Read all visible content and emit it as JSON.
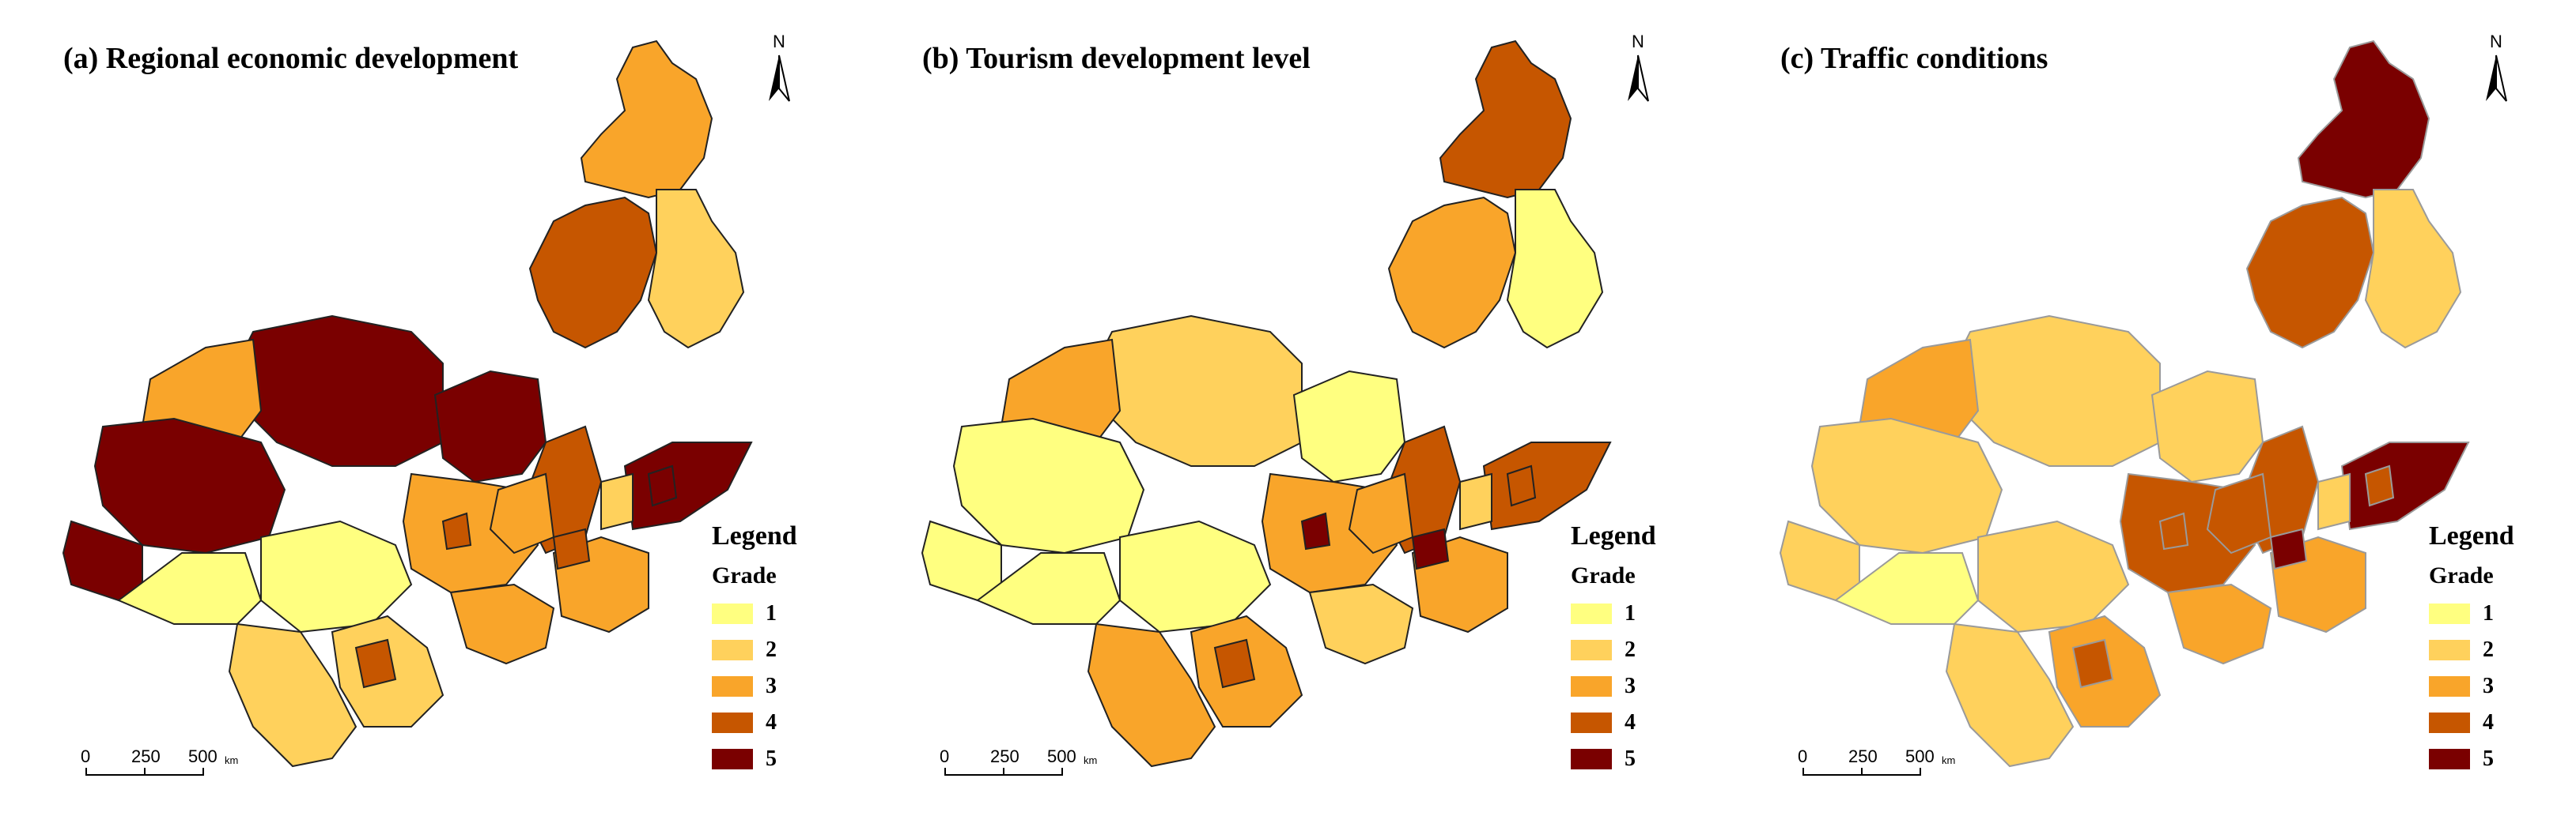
{
  "colors": {
    "grade1": "#ffff80",
    "grade2": "#ffd15c",
    "grade3": "#f9a52a",
    "grade4": "#c65600",
    "grade5": "#7a0000",
    "border": "#222222",
    "border_c": "#9a9a9a"
  },
  "panels": [
    {
      "title": "(a) Regional economic development",
      "north_label": "N",
      "legend_title": "Legend",
      "legend_subtitle": "Grade",
      "legend_items": [
        "1",
        "2",
        "3",
        "4",
        "5"
      ],
      "scale": {
        "ticks": [
          "0",
          "250",
          "500"
        ],
        "unit": "km"
      },
      "regions": {
        "northeast": 3,
        "northeast_mid": 4,
        "northeast_east": 2,
        "north_central": 5,
        "north_west": 3,
        "west_block": 5,
        "tibet": 5,
        "tibet_south": 1,
        "qinghai": 1,
        "southwest": 2,
        "sichuan": 2,
        "central_north": 5,
        "central": 3,
        "central_south": 3,
        "north_china": 4,
        "shandong": 3,
        "shandong_tip": 5,
        "hebei": 3,
        "far_east": 2,
        "spot_a": 4,
        "spot_b": 4,
        "spot_c": 5,
        "spot_d": 4
      }
    },
    {
      "title": "(b) Tourism development level",
      "north_label": "N",
      "legend_title": "Legend",
      "legend_subtitle": "Grade",
      "legend_items": [
        "1",
        "2",
        "3",
        "4",
        "5"
      ],
      "scale": {
        "ticks": [
          "0",
          "250",
          "500"
        ],
        "unit": "km"
      },
      "regions": {
        "northeast": 4,
        "northeast_mid": 3,
        "northeast_east": 1,
        "north_central": 2,
        "north_west": 3,
        "west_block": 1,
        "tibet": 1,
        "tibet_south": 1,
        "qinghai": 1,
        "southwest": 3,
        "sichuan": 3,
        "central_north": 1,
        "central": 3,
        "central_south": 2,
        "north_china": 4,
        "shandong": 3,
        "shandong_tip": 4,
        "hebei": 3,
        "far_east": 2,
        "spot_a": 4,
        "spot_b": 5,
        "spot_c": 4,
        "spot_d": 5
      }
    },
    {
      "title": "(c) Traffic conditions",
      "north_label": "N",
      "legend_title": "Legend",
      "legend_subtitle": "Grade",
      "legend_items": [
        "1",
        "2",
        "3",
        "4",
        "5"
      ],
      "scale": {
        "ticks": [
          "0",
          "250",
          "500"
        ],
        "unit": "km"
      },
      "regions": {
        "northeast": 5,
        "northeast_mid": 4,
        "northeast_east": 2,
        "north_central": 2,
        "north_west": 3,
        "west_block": 2,
        "tibet": 2,
        "tibet_south": 1,
        "qinghai": 2,
        "southwest": 2,
        "sichuan": 3,
        "central_north": 2,
        "central": 4,
        "central_south": 3,
        "north_china": 4,
        "shandong": 3,
        "shandong_tip": 5,
        "hebei": 4,
        "far_east": 2,
        "spot_a": 4,
        "spot_b": 5,
        "spot_c": 4,
        "spot_d": 4
      }
    }
  ]
}
